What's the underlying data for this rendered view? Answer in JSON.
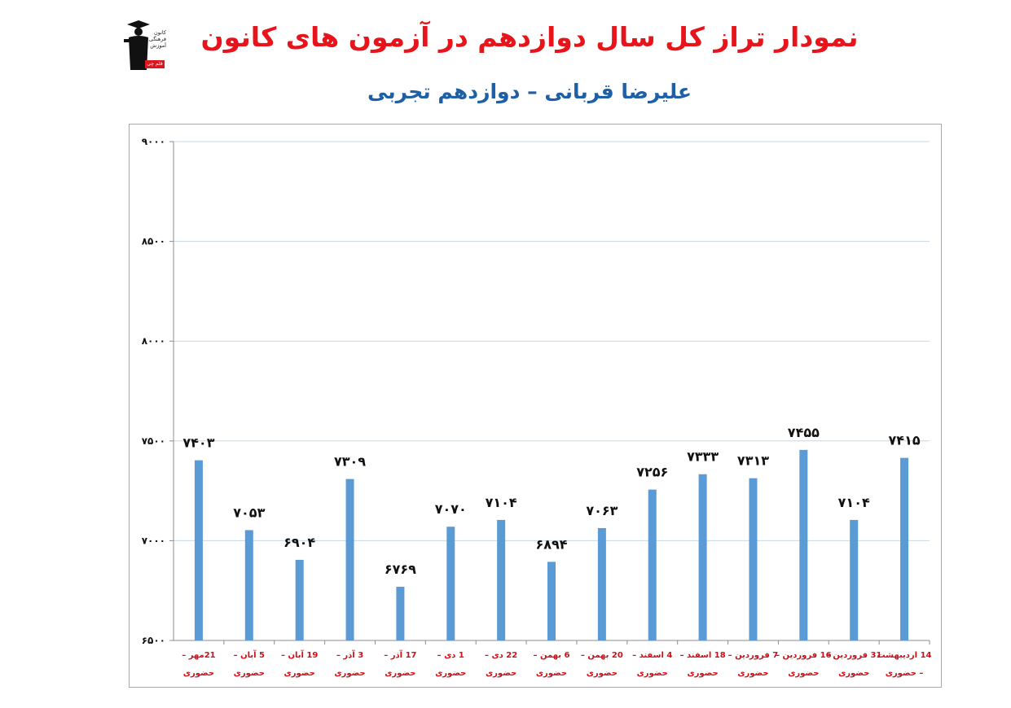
{
  "header": {
    "title": "نمودار تراز کل سال دوازدهم در آزمون های کانون",
    "subtitle": "علیرضا قربانی – دوازدهم تجربی",
    "logo_text": "کانون فرهنگی آموزش",
    "logo_badge": "قلم چی"
  },
  "colors": {
    "bar": "#5b9bd5",
    "title": "#e8141c",
    "subtitle": "#1f5fa5",
    "x_label": "#d10f17",
    "grid": "#c5d8ea"
  },
  "chart_data": {
    "type": "bar",
    "title": "نمودار تراز کل سال دوازدهم در آزمون های کانون",
    "subtitle": "علیرضا قربانی – دوازدهم تجربی",
    "categories": [
      [
        "21مهر –",
        "حضوری"
      ],
      [
        "5 آبان –",
        "حضوری"
      ],
      [
        "19 آبان –",
        "حضوری"
      ],
      [
        "3 آذر –",
        "حضوری"
      ],
      [
        "17 آذر –",
        "حضوری"
      ],
      [
        "1 دی –",
        "حضوری"
      ],
      [
        "22 دی –",
        "حضوری"
      ],
      [
        "6 بهمن –",
        "حضوری"
      ],
      [
        "20 بهمن –",
        "حضوری"
      ],
      [
        "4 اسفند –",
        "حضوری"
      ],
      [
        "18 اسفند –",
        "حضوری"
      ],
      [
        "7 فروردین –",
        "حضوری"
      ],
      [
        "16 فروردین –",
        "حضوری"
      ],
      [
        "31 فروردین –",
        "حضوری"
      ],
      [
        "14 اردیبهشت",
        "– حضوری"
      ]
    ],
    "values": [
      7403,
      7053,
      6904,
      7309,
      6769,
      7070,
      7104,
      6894,
      7063,
      7256,
      7333,
      7313,
      7455,
      7104,
      7415
    ],
    "value_labels": [
      "۷۴۰۳",
      "۷۰۵۳",
      "۶۹۰۴",
      "۷۳۰۹",
      "۶۷۶۹",
      "۷۰۷۰",
      "۷۱۰۴",
      "۶۸۹۴",
      "۷۰۶۳",
      "۷۲۵۶",
      "۷۳۳۳",
      "۷۳۱۳",
      "۷۴۵۵",
      "۷۱۰۴",
      "۷۴۱۵"
    ],
    "ylim": [
      6500,
      9000
    ],
    "yticks": [
      6500,
      7000,
      7500,
      8000,
      8500,
      9000
    ],
    "ytick_labels": [
      "۶۵۰۰",
      "۷۰۰۰",
      "۷۵۰۰",
      "۸۰۰۰",
      "۸۵۰۰",
      "۹۰۰۰"
    ],
    "grid": true,
    "legend": "none"
  }
}
